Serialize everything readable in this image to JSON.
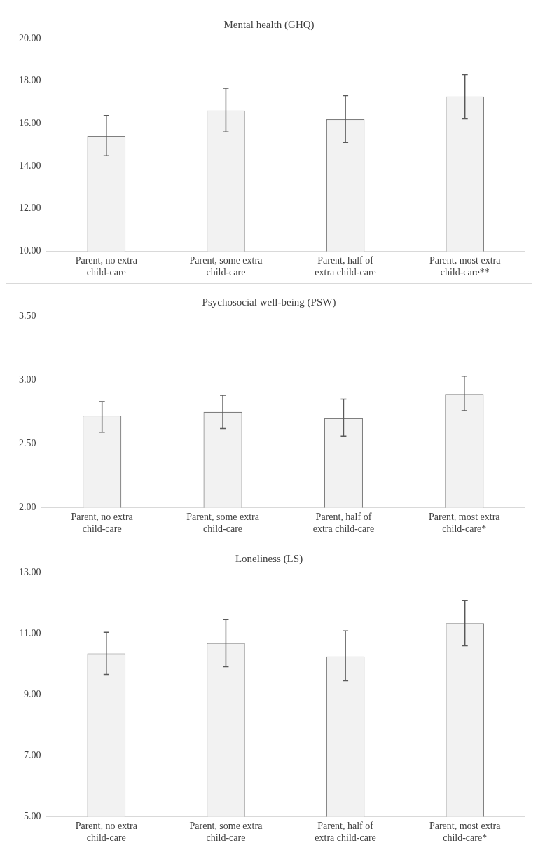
{
  "chart_data": [
    {
      "type": "bar",
      "title": "Mental health (GHQ)",
      "categories": [
        "Parent, no extra child-care",
        "Parent, some extra child-care",
        "Parent, half of extra child-care",
        "Parent, most extra child-care**"
      ],
      "values": [
        15.42,
        16.61,
        16.21,
        17.27
      ],
      "errors": [
        [
          14.49,
          16.38
        ],
        [
          15.61,
          17.66
        ],
        [
          15.11,
          17.31
        ],
        [
          16.23,
          18.3
        ]
      ],
      "color": "#f2f2f2",
      "ylim": [
        10,
        20
      ],
      "yticks": [
        {
          "value": 10,
          "label": "10.00"
        },
        {
          "value": 12,
          "label": "12.00"
        },
        {
          "value": 14,
          "label": "14.00"
        },
        {
          "value": 16,
          "label": "16.00"
        },
        {
          "value": 18,
          "label": "18.00"
        },
        {
          "value": 20,
          "label": "20.00"
        }
      ],
      "grid": false
    },
    {
      "type": "bar",
      "title": "Psychosocial well-being (PSW)",
      "categories": [
        "Parent, no extra child-care",
        "Parent, some extra child-care",
        "Parent, half of extra child-care",
        "Parent, most extra child-care*"
      ],
      "values": [
        2.72,
        2.75,
        2.7,
        2.89
      ],
      "errors": [
        [
          2.59,
          2.83
        ],
        [
          2.62,
          2.88
        ],
        [
          2.56,
          2.85
        ],
        [
          2.76,
          3.03
        ]
      ],
      "color": "#f2f2f2",
      "ylim": [
        2,
        3.5
      ],
      "yticks": [
        {
          "value": 2,
          "label": "2.00"
        },
        {
          "value": 2.5,
          "label": "2.50"
        },
        {
          "value": 3,
          "label": "3.00"
        },
        {
          "value": 3.5,
          "label": "3.50"
        }
      ],
      "grid": false
    },
    {
      "type": "bar",
      "title": "Loneliness (LS)",
      "categories": [
        "Parent, no extra child-care",
        "Parent, some extra child-care",
        "Parent, half of extra child-care",
        "Parent, most extra child-care*"
      ],
      "values": [
        10.35,
        10.69,
        10.25,
        11.34
      ],
      "errors": [
        [
          9.66,
          11.04
        ],
        [
          9.91,
          11.47
        ],
        [
          9.45,
          11.09
        ],
        [
          10.6,
          12.09
        ]
      ],
      "color": "#f2f2f2",
      "ylim": [
        5,
        13
      ],
      "yticks": [
        {
          "value": 5,
          "label": "5.00"
        },
        {
          "value": 7,
          "label": "7.00"
        },
        {
          "value": 9,
          "label": "9.00"
        },
        {
          "value": 11,
          "label": "11.00"
        },
        {
          "value": 13,
          "label": "13.00"
        }
      ],
      "grid": false
    }
  ]
}
